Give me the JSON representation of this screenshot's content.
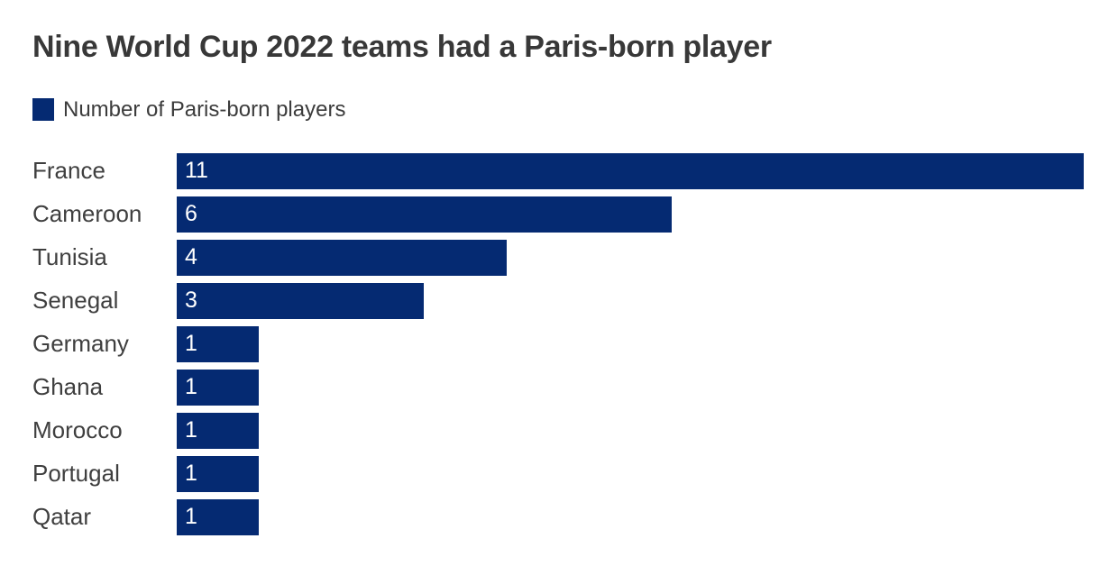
{
  "chart_data": {
    "type": "bar",
    "orientation": "horizontal",
    "title": "Nine World Cup 2022 teams had a Paris-born player",
    "legend": [
      "Number of Paris-born players"
    ],
    "legend_position": "top-left",
    "categories": [
      "France",
      "Cameroon",
      "Tunisia",
      "Senegal",
      "Germany",
      "Ghana",
      "Morocco",
      "Portugal",
      "Qatar"
    ],
    "values": [
      11,
      6,
      4,
      3,
      1,
      1,
      1,
      1,
      1
    ],
    "value_labels_inside_bars": true,
    "xlim": [
      0,
      11
    ],
    "grid": false,
    "axes_hidden": true,
    "bar_color": "#052a72"
  },
  "colors": {
    "bar": "#052a72",
    "title_text": "#383838",
    "category_text": "#3f3f3f",
    "value_text": "#ffffff",
    "background": "#ffffff"
  }
}
